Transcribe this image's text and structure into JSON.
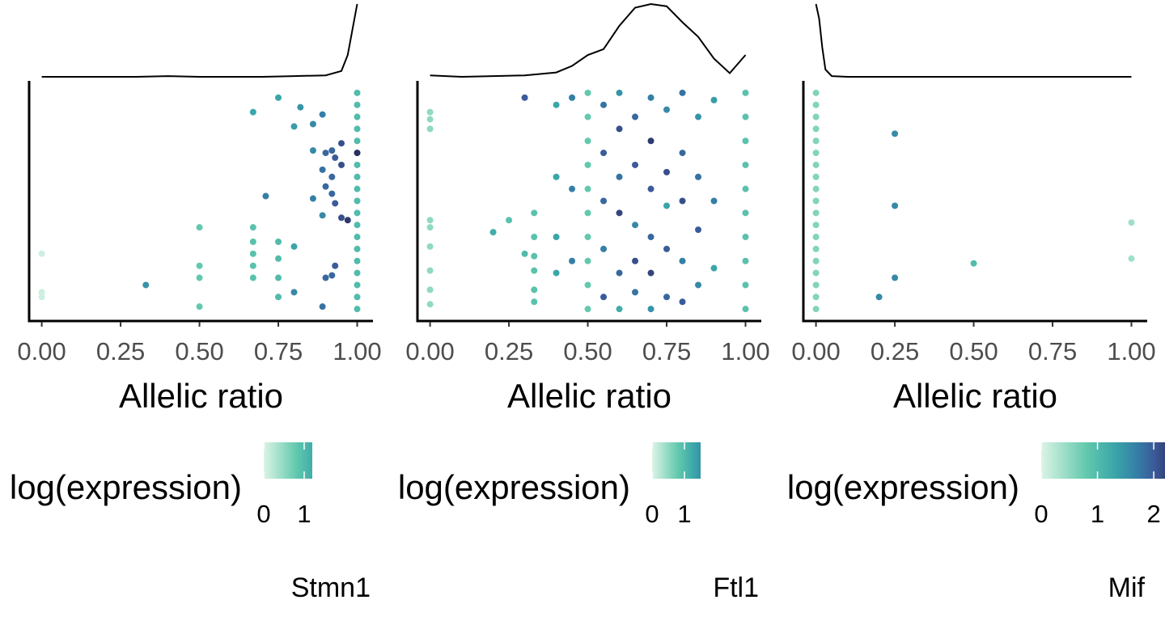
{
  "chart_data": [
    {
      "type": "scatter",
      "xlabel": "Allelic ratio",
      "legend_title": "log(expression)",
      "caption": "Stmn1",
      "xlim": [
        -0.04,
        1.05
      ],
      "ylim": [
        0,
        1
      ],
      "xticks": [
        {
          "value": 0,
          "label": "0.00"
        },
        {
          "value": 0.25,
          "label": "0.25"
        },
        {
          "value": 0.5,
          "label": "0.50"
        },
        {
          "value": 0.75,
          "label": "0.75"
        },
        {
          "value": 1,
          "label": "1.00"
        }
      ],
      "clim": [
        0,
        1.2
      ],
      "cticks": [
        0,
        1
      ],
      "colorscale": [
        [
          0,
          "#dcf4e6"
        ],
        [
          0.8,
          "#62c9ad"
        ],
        [
          1.3,
          "#3aa6a9"
        ],
        [
          1.7,
          "#347fa6"
        ],
        [
          2.0,
          "#3b5b9a"
        ],
        [
          2.4,
          "#2b2f5e"
        ]
      ],
      "x": [
        0,
        0,
        0,
        0.33,
        0.5,
        0.5,
        0.5,
        0.5,
        0.67,
        0.67,
        0.67,
        0.67,
        0.67,
        0.67,
        0.71,
        0.75,
        0.75,
        0.75,
        0.75,
        0.75,
        0.8,
        0.8,
        0.8,
        0.82,
        0.86,
        0.86,
        0.86,
        0.89,
        0.89,
        0.89,
        0.89,
        0.9,
        0.9,
        0.9,
        0.92,
        0.92,
        0.92,
        0.92,
        0.93,
        0.93,
        0.93,
        0.95,
        0.95,
        0.95,
        0.97,
        1,
        1,
        1,
        1,
        1,
        1,
        1,
        1,
        1,
        1,
        1,
        1,
        1,
        1,
        1,
        1,
        1,
        1,
        1,
        1
      ],
      "y": [
        0.28,
        0.12,
        0.1,
        0.15,
        0.39,
        0.23,
        0.18,
        0.06,
        0.39,
        0.33,
        0.28,
        0.23,
        0.18,
        0.87,
        0.52,
        0.93,
        0.33,
        0.26,
        0.18,
        0.1,
        0.81,
        0.31,
        0.12,
        0.89,
        0.82,
        0.71,
        0.51,
        0.86,
        0.63,
        0.44,
        0.06,
        0.7,
        0.56,
        0.18,
        0.71,
        0.6,
        0.53,
        0.19,
        0.68,
        0.49,
        0.23,
        0.74,
        0.65,
        0.43,
        0.42,
        0.05,
        0.1,
        0.15,
        0.2,
        0.25,
        0.3,
        0.35,
        0.4,
        0.45,
        0.5,
        0.55,
        0.6,
        0.65,
        0.7,
        0.75,
        0.8,
        0.85,
        0.9,
        0.95,
        0.7
      ],
      "z": [
        0.1,
        0.1,
        0.1,
        1.5,
        0.8,
        0.8,
        0.8,
        0.8,
        0.9,
        0.9,
        0.9,
        0.9,
        0.9,
        1.3,
        1.7,
        1.3,
        1.0,
        1.0,
        1.0,
        1.0,
        1.4,
        1.3,
        1.6,
        1.5,
        1.6,
        1.6,
        1.7,
        1.7,
        1.8,
        1.6,
        1.8,
        1.9,
        1.9,
        1.9,
        1.9,
        1.9,
        1.9,
        1.9,
        2.0,
        2.0,
        2.0,
        2.1,
        2.1,
        2.1,
        2.3,
        1.0,
        1.0,
        1.0,
        1.0,
        1.0,
        1.0,
        1.0,
        1.0,
        1.0,
        1.0,
        1.0,
        1.0,
        1.0,
        1.0,
        1.0,
        1.0,
        1.0,
        1.0,
        1.0,
        2.4
      ],
      "density_x": [
        0,
        0.1,
        0.2,
        0.3,
        0.4,
        0.5,
        0.6,
        0.7,
        0.8,
        0.9,
        0.95,
        0.97,
        1.0
      ],
      "density_y": [
        0,
        0,
        0,
        0,
        0.01,
        0,
        0,
        0,
        0.01,
        0.02,
        0.08,
        0.3,
        1.0
      ]
    },
    {
      "type": "scatter",
      "xlabel": "Allelic ratio",
      "legend_title": "log(expression)",
      "caption": "Ftl1",
      "xlim": [
        -0.04,
        1.05
      ],
      "ylim": [
        0,
        1
      ],
      "xticks": [
        {
          "value": 0,
          "label": "0.00"
        },
        {
          "value": 0.25,
          "label": "0.25"
        },
        {
          "value": 0.5,
          "label": "0.50"
        },
        {
          "value": 0.75,
          "label": "0.75"
        },
        {
          "value": 1,
          "label": "1.00"
        }
      ],
      "clim": [
        0,
        1.5
      ],
      "cticks": [
        0,
        1
      ],
      "colorscale": [
        [
          0,
          "#dcf4e6"
        ],
        [
          0.8,
          "#62c9ad"
        ],
        [
          1.3,
          "#3aa6a9"
        ],
        [
          1.7,
          "#347fa6"
        ],
        [
          2.0,
          "#3b5b9a"
        ],
        [
          2.4,
          "#2b2f5e"
        ]
      ],
      "x": [
        0,
        0,
        0,
        0,
        0,
        0,
        0,
        0,
        0,
        0.2,
        0.25,
        0.3,
        0.3,
        0.33,
        0.33,
        0.33,
        0.33,
        0.33,
        0.33,
        0.4,
        0.4,
        0.4,
        0.4,
        0.45,
        0.45,
        0.45,
        0.5,
        0.5,
        0.5,
        0.5,
        0.5,
        0.5,
        0.5,
        0.5,
        0.5,
        0.5,
        0.55,
        0.55,
        0.55,
        0.55,
        0.55,
        0.6,
        0.6,
        0.6,
        0.6,
        0.6,
        0.6,
        0.65,
        0.65,
        0.65,
        0.65,
        0.65,
        0.7,
        0.7,
        0.7,
        0.7,
        0.7,
        0.7,
        0.75,
        0.75,
        0.75,
        0.75,
        0.75,
        0.8,
        0.8,
        0.8,
        0.8,
        0.8,
        0.85,
        0.85,
        0.85,
        0.85,
        0.9,
        0.9,
        0.9,
        1,
        1,
        1,
        1,
        1,
        1,
        1,
        1,
        1,
        1
      ],
      "y": [
        0.87,
        0.84,
        0.8,
        0.42,
        0.39,
        0.31,
        0.21,
        0.13,
        0.07,
        0.37,
        0.42,
        0.93,
        0.28,
        0.45,
        0.35,
        0.27,
        0.21,
        0.13,
        0.08,
        0.9,
        0.6,
        0.35,
        0.2,
        0.93,
        0.55,
        0.25,
        0.05,
        0.15,
        0.25,
        0.35,
        0.45,
        0.55,
        0.65,
        0.75,
        0.85,
        0.95,
        0.9,
        0.7,
        0.5,
        0.3,
        0.1,
        0.95,
        0.8,
        0.6,
        0.45,
        0.2,
        0.05,
        0.85,
        0.65,
        0.4,
        0.25,
        0.12,
        0.93,
        0.75,
        0.55,
        0.35,
        0.2,
        0.05,
        0.88,
        0.62,
        0.48,
        0.3,
        0.1,
        0.95,
        0.7,
        0.5,
        0.25,
        0.08,
        0.85,
        0.6,
        0.38,
        0.15,
        0.92,
        0.5,
        0.22,
        0.05,
        0.15,
        0.25,
        0.35,
        0.45,
        0.55,
        0.65,
        0.75,
        0.85,
        0.95
      ],
      "z": [
        0.5,
        0.5,
        0.5,
        0.5,
        0.5,
        0.5,
        0.5,
        0.5,
        0.5,
        1.2,
        0.9,
        2.0,
        1.0,
        0.9,
        0.9,
        0.9,
        0.9,
        0.9,
        0.9,
        1.3,
        1.3,
        1.3,
        1.3,
        1.7,
        1.7,
        1.7,
        0.8,
        0.8,
        0.8,
        0.8,
        0.8,
        0.8,
        0.8,
        0.8,
        0.8,
        0.8,
        1.8,
        2.0,
        1.9,
        1.7,
        2.0,
        1.5,
        2.1,
        1.8,
        2.2,
        1.9,
        1.2,
        1.9,
        2.0,
        1.6,
        2.1,
        1.8,
        1.7,
        2.3,
        2.0,
        1.9,
        2.2,
        1.5,
        1.6,
        2.1,
        1.3,
        2.0,
        1.9,
        1.8,
        1.9,
        2.1,
        1.7,
        2.0,
        1.5,
        1.8,
        2.0,
        1.6,
        1.4,
        1.7,
        1.3,
        0.9,
        0.9,
        0.9,
        0.9,
        0.9,
        0.9,
        0.9,
        0.9,
        0.9,
        0.9
      ],
      "density_x": [
        0,
        0.1,
        0.2,
        0.3,
        0.4,
        0.45,
        0.5,
        0.55,
        0.6,
        0.65,
        0.7,
        0.75,
        0.8,
        0.85,
        0.9,
        0.95,
        1
      ],
      "density_y": [
        0.02,
        0,
        0.01,
        0.02,
        0.06,
        0.15,
        0.3,
        0.38,
        0.7,
        0.95,
        1.0,
        0.97,
        0.75,
        0.55,
        0.25,
        0.05,
        0.3
      ]
    },
    {
      "type": "scatter",
      "xlabel": "Allelic ratio",
      "legend_title": "log(expression)",
      "caption": "Mif",
      "xlim": [
        -0.04,
        1.05
      ],
      "ylim": [
        0,
        1
      ],
      "xticks": [
        {
          "value": 0,
          "label": "0.00"
        },
        {
          "value": 0.25,
          "label": "0.25"
        },
        {
          "value": 0.5,
          "label": "0.50"
        },
        {
          "value": 0.75,
          "label": "0.75"
        },
        {
          "value": 1,
          "label": "1.00"
        }
      ],
      "clim": [
        0,
        2.2
      ],
      "cticks": [
        0,
        1,
        2
      ],
      "colorscale": [
        [
          0,
          "#dcf4e6"
        ],
        [
          0.8,
          "#62c9ad"
        ],
        [
          1.3,
          "#3aa6a9"
        ],
        [
          1.7,
          "#347fa6"
        ],
        [
          2.0,
          "#3b5b9a"
        ],
        [
          2.4,
          "#2b2f5e"
        ]
      ],
      "x": [
        0,
        0,
        0,
        0,
        0,
        0,
        0,
        0,
        0,
        0,
        0,
        0,
        0,
        0,
        0,
        0,
        0,
        0,
        0,
        0.2,
        0.25,
        0.25,
        0.25,
        0.5,
        1,
        1
      ],
      "y": [
        0.05,
        0.1,
        0.15,
        0.2,
        0.25,
        0.3,
        0.35,
        0.4,
        0.45,
        0.5,
        0.55,
        0.6,
        0.65,
        0.7,
        0.75,
        0.8,
        0.85,
        0.9,
        0.95,
        0.1,
        0.78,
        0.48,
        0.18,
        0.24,
        0.41,
        0.26
      ],
      "z": [
        0.6,
        0.6,
        0.6,
        0.6,
        0.6,
        0.6,
        0.6,
        0.6,
        0.6,
        0.6,
        0.6,
        0.6,
        0.6,
        0.6,
        0.6,
        0.6,
        0.6,
        0.6,
        0.6,
        1.6,
        1.6,
        1.6,
        1.6,
        1.0,
        0.4,
        0.4
      ],
      "density_x": [
        0,
        0.01,
        0.02,
        0.03,
        0.05,
        0.1,
        0.2,
        0.4,
        0.6,
        0.8,
        1
      ],
      "density_y": [
        1.0,
        0.8,
        0.4,
        0.1,
        0.01,
        0,
        0,
        0,
        0,
        0,
        0
      ]
    }
  ]
}
